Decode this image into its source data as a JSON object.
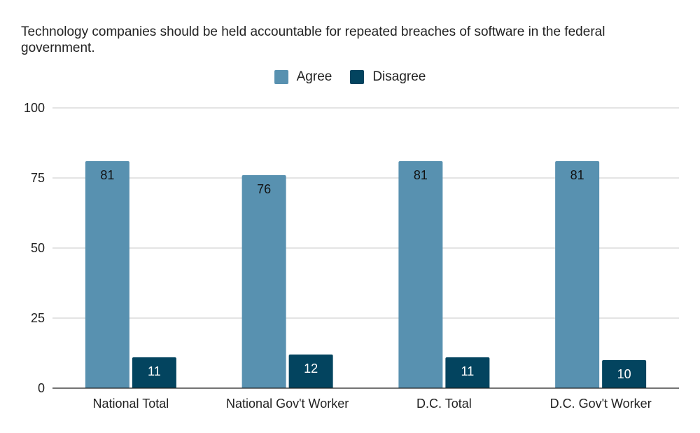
{
  "chart_data": {
    "type": "bar",
    "title": "Technology companies should be held accountable for repeated breaches of software in the federal government.",
    "categories": [
      "National Total",
      "National Gov't Worker",
      "D.C. Total",
      "D.C. Gov't Worker"
    ],
    "series": [
      {
        "name": "Agree",
        "color": "#5891b0",
        "values": [
          81,
          76,
          81,
          81
        ]
      },
      {
        "name": "Disagree",
        "color": "#03445f",
        "values": [
          11,
          12,
          11,
          10
        ]
      }
    ],
    "yticks": [
      0,
      25,
      50,
      75,
      100
    ],
    "ylim": [
      0,
      100
    ],
    "xlabel": "",
    "ylabel": "",
    "grid": true,
    "legend_position": "top-center"
  }
}
